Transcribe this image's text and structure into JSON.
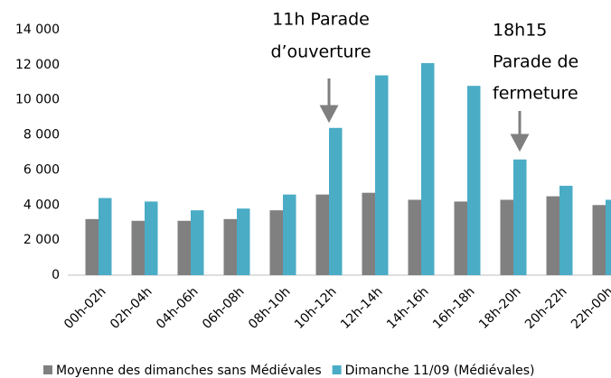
{
  "chart_data": {
    "type": "bar",
    "categories": [
      "00h-02h",
      "02h-04h",
      "04h-06h",
      "06h-08h",
      "08h-10h",
      "10h-12h",
      "12h-14h",
      "14h-16h",
      "16h-18h",
      "18h-20h",
      "20h-22h",
      "22h-00h"
    ],
    "series": [
      {
        "name": "Moyenne des dimanches sans Médiévales",
        "color": "#808080",
        "values": [
          3200,
          3100,
          3100,
          3200,
          3700,
          4600,
          4700,
          4300,
          4200,
          4300,
          4500,
          4000
        ]
      },
      {
        "name": "Dimanche 11/09 (Médiévales)",
        "color": "#4bacc6",
        "values": [
          4400,
          4200,
          3700,
          3800,
          4600,
          8400,
          11400,
          12100,
          10800,
          6600,
          5100,
          4300
        ]
      }
    ],
    "ylim": [
      0,
      14000
    ],
    "yticks": [
      0,
      {
        "value": 2000,
        "label": "2 000"
      },
      {
        "value": 4000,
        "label": "4 000"
      },
      {
        "value": 6000,
        "label": "6 000"
      },
      {
        "value": 8000,
        "label": "8 000"
      },
      {
        "value": 10000,
        "label": "10 000"
      },
      {
        "value": 12000,
        "label": "12 000"
      },
      {
        "value": 14000,
        "label": "14 000"
      }
    ],
    "grid": false,
    "annotations": [
      [
        "11h Parade",
        "d’ouverture"
      ],
      [
        "18h15",
        "Parade de",
        "fermeture"
      ]
    ]
  }
}
